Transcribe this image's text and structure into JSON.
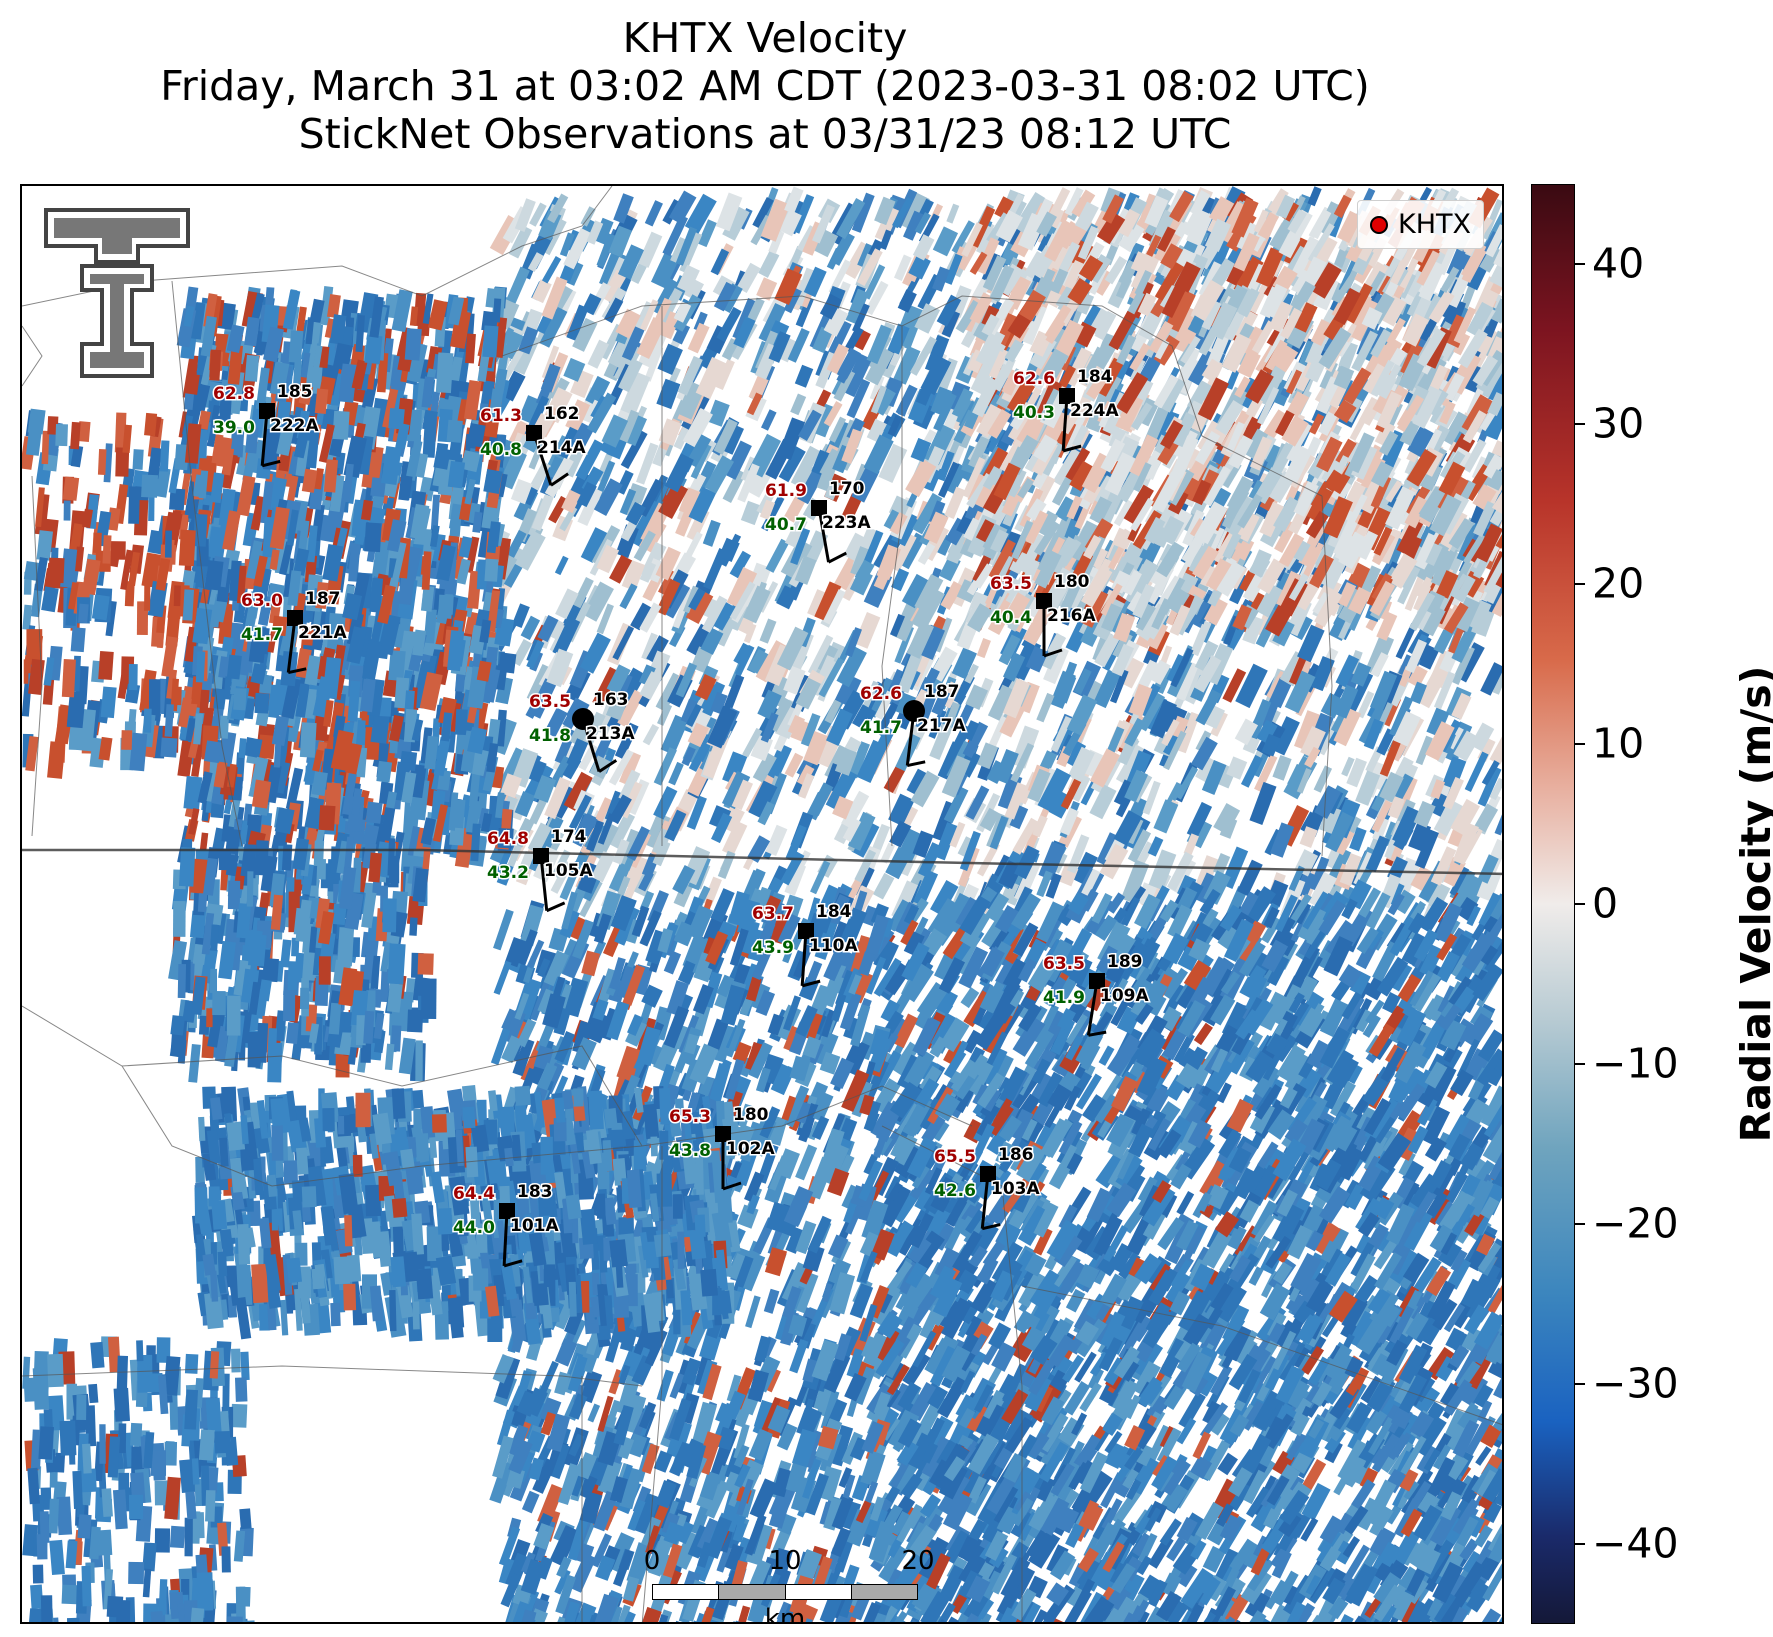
{
  "title": {
    "line1": "KHTX Velocity",
    "line2": "Friday, March 31 at 03:02 AM CDT (2023-03-31 08:02 UTC)",
    "line3": "StickNet Observations at 03/31/23 08:12 UTC"
  },
  "legend": {
    "label": "KHTX",
    "marker_color": "#e00000"
  },
  "colorbar": {
    "label": "Radial Velocity (m/s)",
    "min": -45,
    "max": 45,
    "ticks": [
      "40",
      "30",
      "20",
      "10",
      "0",
      "−10",
      "−20",
      "−30",
      "−40"
    ],
    "tick_values": [
      40,
      30,
      20,
      10,
      0,
      -10,
      -20,
      -30,
      -40
    ]
  },
  "scalebar": {
    "ticks": [
      "0",
      "10",
      "20"
    ],
    "unit": "km"
  },
  "logo": {
    "name": "texas-tech-double-t-logo"
  },
  "colors": {
    "temp_text": "#a00000",
    "dewpoint_text": "#006000",
    "station_text": "#000000"
  },
  "stations": [
    {
      "id": "222A",
      "temp": "62.8",
      "dir": "185",
      "dew": "39.0",
      "marker": "square"
    },
    {
      "id": "214A",
      "temp": "61.3",
      "dir": "162",
      "dew": "40.8",
      "marker": "square"
    },
    {
      "id": "224A",
      "temp": "62.6",
      "dir": "184",
      "dew": "40.3",
      "marker": "square"
    },
    {
      "id": "223A",
      "temp": "61.9",
      "dir": "170",
      "dew": "40.7",
      "marker": "square"
    },
    {
      "id": "221A",
      "temp": "63.0",
      "dir": "187",
      "dew": "41.7",
      "marker": "square"
    },
    {
      "id": "216A",
      "temp": "63.5",
      "dir": "180",
      "dew": "40.4",
      "marker": "square"
    },
    {
      "id": "213A",
      "temp": "63.5",
      "dir": "163",
      "dew": "41.8",
      "marker": "circle"
    },
    {
      "id": "217A",
      "temp": "62.6",
      "dir": "187",
      "dew": "41.7",
      "marker": "circle"
    },
    {
      "id": "105A",
      "temp": "64.8",
      "dir": "174",
      "dew": "43.2",
      "marker": "square"
    },
    {
      "id": "110A",
      "temp": "63.7",
      "dir": "184",
      "dew": "43.9",
      "marker": "square"
    },
    {
      "id": "109A",
      "temp": "63.5",
      "dir": "189",
      "dew": "41.9",
      "marker": "square"
    },
    {
      "id": "102A",
      "temp": "65.3",
      "dir": "180",
      "dew": "43.8",
      "marker": "square"
    },
    {
      "id": "103A",
      "temp": "65.5",
      "dir": "186",
      "dew": "42.6",
      "marker": "square"
    },
    {
      "id": "101A",
      "temp": "64.4",
      "dir": "183",
      "dew": "44.0",
      "marker": "square"
    }
  ]
}
